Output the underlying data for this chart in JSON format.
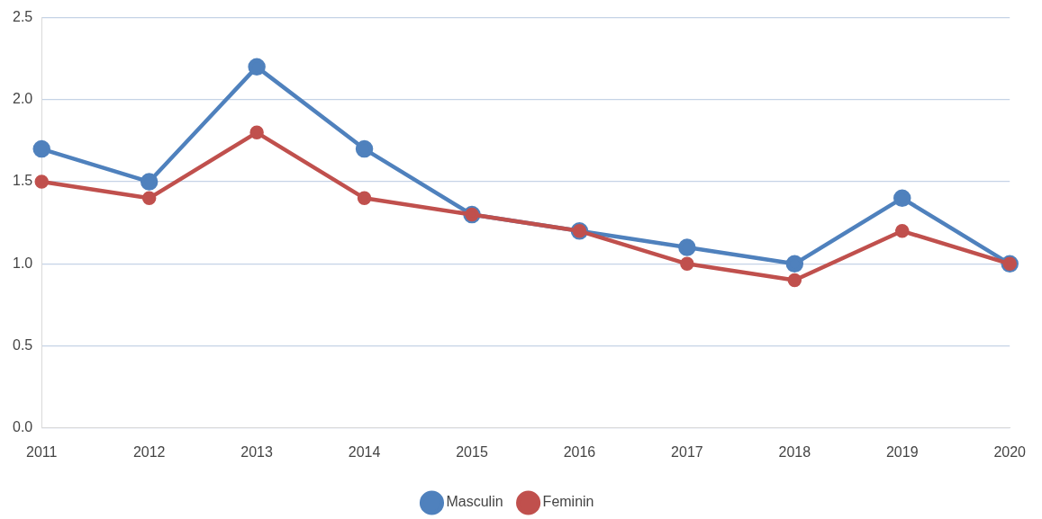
{
  "chart_data": {
    "type": "line",
    "categories": [
      "2011",
      "2012",
      "2013",
      "2014",
      "2015",
      "2016",
      "2017",
      "2018",
      "2019",
      "2020"
    ],
    "series": [
      {
        "name": "Masculin",
        "color": "#4f81bd",
        "values": [
          1.7,
          1.5,
          2.2,
          1.7,
          1.3,
          1.2,
          1.1,
          1.0,
          1.4,
          1.0
        ]
      },
      {
        "name": "Feminin",
        "color": "#c0504d",
        "values": [
          1.5,
          1.4,
          1.8,
          1.4,
          1.3,
          1.2,
          1.0,
          0.9,
          1.2,
          1.0
        ]
      }
    ],
    "ylim": [
      0,
      2.5
    ],
    "yticks": [
      {
        "value": 0,
        "label": "0.0"
      },
      {
        "value": 0.5,
        "label": "0.5"
      },
      {
        "value": 1,
        "label": "1.0"
      },
      {
        "value": 1.5,
        "label": "1.5"
      },
      {
        "value": 2,
        "label": "2.0"
      },
      {
        "value": 2.5,
        "label": "2.5"
      }
    ],
    "grid": "y",
    "legend": "bottom",
    "marker": "circle",
    "line_style": "solid"
  }
}
